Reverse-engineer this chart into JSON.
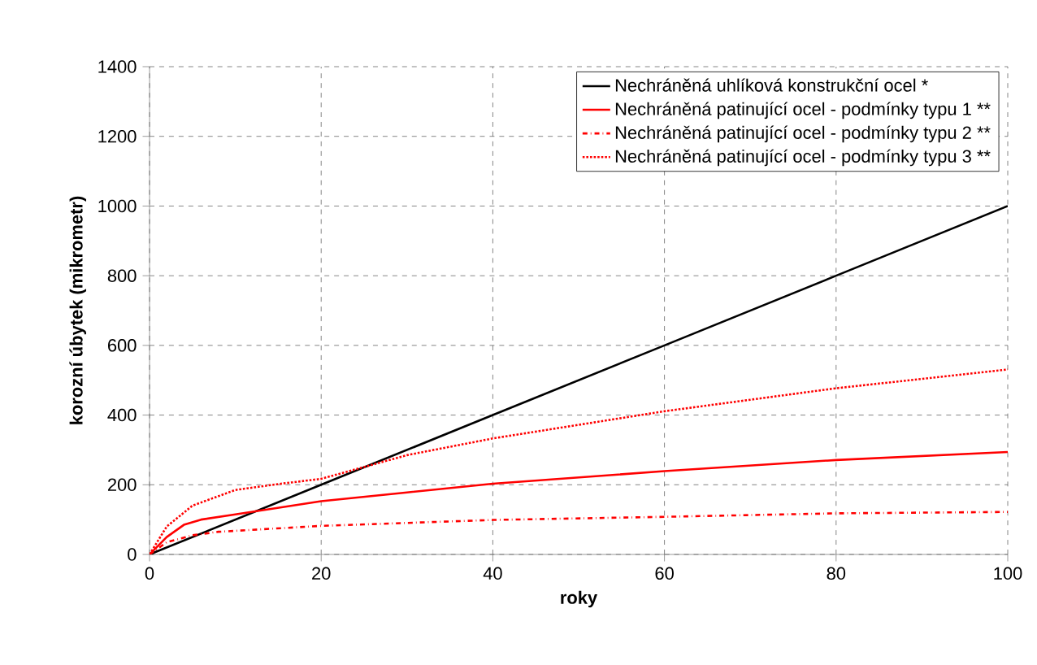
{
  "chart_data": {
    "type": "line",
    "xlabel": "roky",
    "ylabel": "korozní úbytek (mikrometr)",
    "xlim": [
      0,
      100
    ],
    "ylim": [
      0,
      1400
    ],
    "xticks": [
      0,
      20,
      40,
      60,
      80,
      100
    ],
    "yticks": [
      0,
      200,
      400,
      600,
      800,
      1000,
      1200,
      1400
    ],
    "grid": true,
    "legend": "top right",
    "marker": "none",
    "series": [
      {
        "name": "Nechráněná uhlíková konstrukční ocel *",
        "color": "#000000",
        "line_style": "solid",
        "x": [
          0,
          20,
          40,
          60,
          80,
          100
        ],
        "values": [
          0,
          200,
          400,
          600,
          800,
          1000
        ]
      },
      {
        "name": "Nechráněná patinující ocel - podmínky typu 1 **",
        "color": "#ff0000",
        "line_style": "solid",
        "x": [
          0,
          2,
          4,
          6,
          10,
          20,
          30,
          40,
          60,
          80,
          100
        ],
        "values": [
          0,
          50,
          85,
          100,
          115,
          153,
          178,
          203,
          239,
          271,
          294
        ]
      },
      {
        "name": "Nechráněná patinující ocel - podmínky typu 2 **",
        "color": "#ff0000",
        "line_style": "dashdot",
        "x": [
          0,
          2,
          5,
          8,
          20,
          40,
          60,
          80,
          100
        ],
        "values": [
          0,
          35,
          55,
          65,
          82,
          99,
          108,
          118,
          122
        ]
      },
      {
        "name": "Nechráněná patinující ocel - podmínky typu 3 **",
        "color": "#ff0000",
        "line_style": "dotted",
        "x": [
          0,
          2,
          5,
          10,
          15,
          20,
          30,
          40,
          60,
          80,
          100
        ],
        "values": [
          0,
          80,
          140,
          185,
          202,
          217,
          285,
          333,
          411,
          477,
          531
        ]
      }
    ]
  }
}
